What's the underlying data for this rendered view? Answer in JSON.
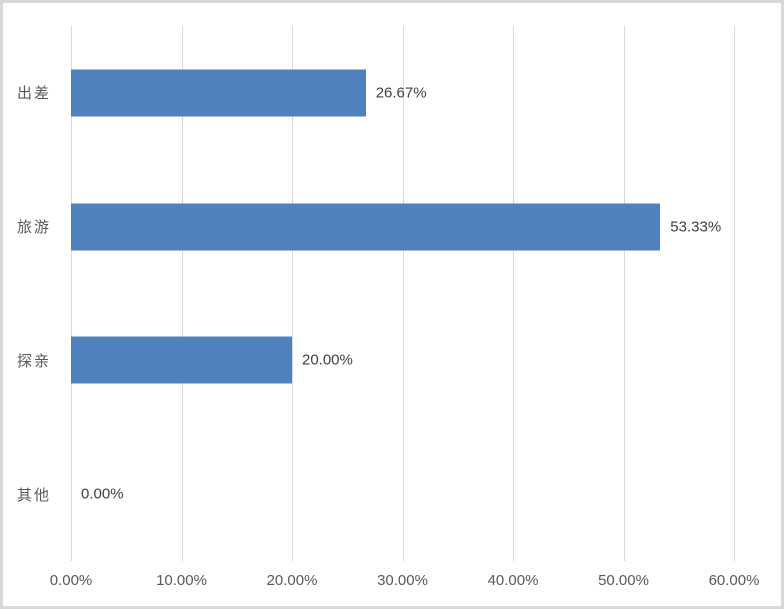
{
  "chart_data": {
    "type": "bar",
    "orientation": "horizontal",
    "title": "",
    "xlabel": "",
    "ylabel": "",
    "categories": [
      "出差",
      "旅游",
      "探亲",
      "其他"
    ],
    "values": [
      26.67,
      53.33,
      20.0,
      0.0
    ],
    "data_labels": [
      "26.67%",
      "53.33%",
      "20.00%",
      "0.00%"
    ],
    "xlim": [
      0,
      60
    ],
    "x_tick_values": [
      0,
      10,
      20,
      30,
      40,
      50,
      60
    ],
    "x_tick_labels": [
      "0.00%",
      "10.00%",
      "20.00%",
      "30.00%",
      "40.00%",
      "50.00%",
      "60.00%"
    ],
    "grid": "vertical-gridlines-on",
    "legend": "none",
    "bar_color": "#4F81BD",
    "gridline_color": "#D9D9D9",
    "frame_border_color": "#D9D9D9",
    "category_label_color": "#595959",
    "tick_label_color": "#595959",
    "data_label_color": "#3F3F3F"
  }
}
